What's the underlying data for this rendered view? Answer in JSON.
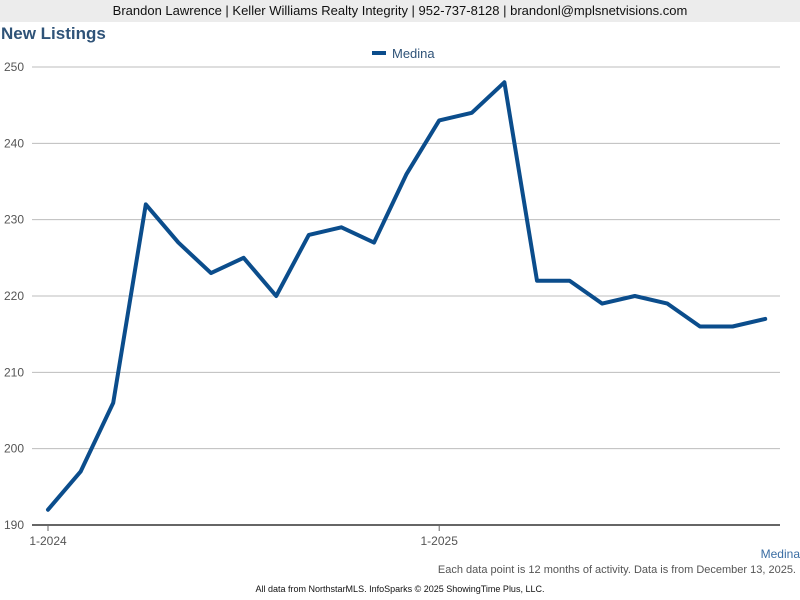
{
  "header": {
    "contact_line": "Brandon Lawrence | Keller Williams Realty Integrity | 952-737-8128 | brandonl@mplsnetvisions.com"
  },
  "chart_data": {
    "type": "line",
    "title": "New Listings",
    "xlabel": "",
    "ylabel": "",
    "x": [
      "2024-01",
      "2024-02",
      "2024-03",
      "2024-04",
      "2024-05",
      "2024-06",
      "2024-07",
      "2024-08",
      "2024-09",
      "2024-10",
      "2024-11",
      "2024-12",
      "2025-01",
      "2025-02",
      "2025-03",
      "2025-04",
      "2025-05",
      "2025-06",
      "2025-07",
      "2025-08",
      "2025-09",
      "2025-10",
      "2025-11"
    ],
    "x_tick_labels": [
      {
        "index": 0,
        "label": "1-2024"
      },
      {
        "index": 12,
        "label": "1-2025"
      }
    ],
    "ylim": [
      190,
      250
    ],
    "y_ticks": [
      190,
      200,
      210,
      220,
      230,
      240,
      250
    ],
    "grid": true,
    "legend_position": "top-center",
    "series": [
      {
        "name": "Medina",
        "color": "#0b4d8c",
        "values": [
          192,
          197,
          206,
          232,
          227,
          223,
          225,
          220,
          228,
          229,
          227,
          236,
          243,
          244,
          248,
          222,
          222,
          219,
          220,
          219,
          216,
          216,
          217
        ]
      }
    ]
  },
  "series_tag": "Medina",
  "note": "Each data point is 12 months of activity. Data is from December 13, 2025.",
  "footer": "All data from NorthstarMLS. InfoSparks © 2025 ShowingTime Plus, LLC."
}
